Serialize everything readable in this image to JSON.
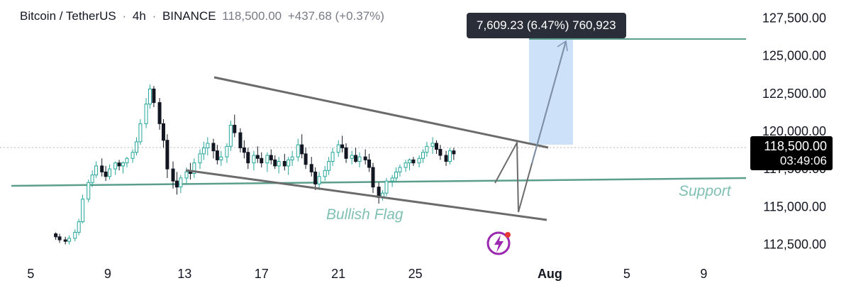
{
  "header": {
    "symbol": "Bitcoin / TetherUS",
    "separator": "·",
    "interval": "4h",
    "exchange": "BINANCE",
    "last_price": "118,500.00",
    "change": "+437.68 (+0.37%)"
  },
  "tooltip": {
    "text": "7,609.23 (6.47%) 760,923"
  },
  "price_tag": {
    "price": "118,500.00",
    "countdown": "03:49:06"
  },
  "colors": {
    "up": "#26a69a",
    "down": "#131722",
    "support_line": "#5a9e8b",
    "support_text": "#80c0b2",
    "flag_lines": "#6b6b6b",
    "target_box": "#cde2f8",
    "arrow": "#7f95b3",
    "grid_dotted": "#b0b3b8",
    "lightning": "#9c27b0"
  },
  "annotations": {
    "support_label": "Support",
    "pattern_label": "Bullish Flag",
    "lightning_icon": "lightning-icon"
  },
  "chart_data": {
    "type": "candlestick",
    "symbol": "BTCUSDT",
    "interval": "4h",
    "y_axis": {
      "ticks": [
        "112,500.00",
        "115,000.00",
        "117,500.00",
        "120,000.00",
        "122,500.00",
        "125,000.00",
        "127,500.00"
      ],
      "range": [
        111300,
        128700
      ]
    },
    "x_axis": {
      "ticks": [
        "5",
        "9",
        "13",
        "17",
        "21",
        "25",
        "Aug",
        "5",
        "9"
      ],
      "range_days": [
        3.4,
        42.2
      ]
    },
    "current_price": 118500,
    "support_level": {
      "label": "Support",
      "from": [
        -0.5,
        115750
      ],
      "to": [
        13.5,
        116300
      ]
    },
    "flag_channel": {
      "upper": {
        "from": [
          13.2,
          123300
        ],
        "to": [
          31.2,
          118650
        ]
      },
      "lower": {
        "from": [
          12.9,
          117200
        ],
        "to": [
          31.2,
          113500
        ]
      }
    },
    "projection_path": [
      [
        29.9,
        116000
      ],
      [
        30.6,
        118700
      ],
      [
        30.9,
        113900
      ],
      [
        31.8,
        125650
      ]
    ],
    "target": {
      "low": 118750,
      "high": 125950,
      "x_from": 30.2,
      "x_to": 32.4
    },
    "target_line": 125850,
    "measurement": {
      "price_change": 7609.23,
      "percent": 6.47,
      "ticks": 760923
    },
    "candles": [
      [
        6.3,
        113200,
        113300,
        112800,
        113000
      ],
      [
        6.5,
        113000,
        113200,
        112600,
        112800
      ],
      [
        6.8,
        112800,
        113000,
        112500,
        112700
      ],
      [
        7.0,
        112700,
        113100,
        112500,
        112900
      ],
      [
        7.3,
        112900,
        113500,
        112700,
        113300
      ],
      [
        7.5,
        113300,
        114200,
        113100,
        114000
      ],
      [
        7.7,
        114000,
        115800,
        113900,
        115500
      ],
      [
        8.0,
        115500,
        116800,
        115300,
        116600
      ],
      [
        8.2,
        116600,
        117400,
        116300,
        117100
      ],
      [
        8.4,
        117100,
        118000,
        116900,
        117700
      ],
      [
        8.7,
        117700,
        118200,
        117000,
        117300
      ],
      [
        8.9,
        117300,
        117700,
        116700,
        117000
      ],
      [
        9.1,
        117000,
        117800,
        116800,
        117500
      ],
      [
        9.4,
        117500,
        118000,
        117100,
        117900
      ],
      [
        9.6,
        117900,
        118100,
        117400,
        117700
      ],
      [
        9.8,
        117700,
        118000,
        117200,
        117900
      ],
      [
        10.0,
        117900,
        118300,
        117600,
        118200
      ],
      [
        10.3,
        118200,
        118800,
        117900,
        118600
      ],
      [
        10.5,
        118600,
        119600,
        118400,
        119300
      ],
      [
        10.7,
        119300,
        120800,
        119100,
        120500
      ],
      [
        11.0,
        120500,
        122200,
        120200,
        121800
      ],
      [
        11.2,
        121800,
        123100,
        121500,
        122800
      ],
      [
        11.4,
        122800,
        123000,
        121600,
        121900
      ],
      [
        11.7,
        121900,
        122200,
        120100,
        120500
      ],
      [
        11.9,
        120500,
        120800,
        118900,
        119400
      ],
      [
        12.1,
        119400,
        119800,
        116900,
        117500
      ],
      [
        12.4,
        117500,
        118000,
        116200,
        116700
      ],
      [
        12.6,
        116700,
        117300,
        115800,
        116300
      ],
      [
        12.8,
        116300,
        117100,
        115900,
        116900
      ],
      [
        13.1,
        116900,
        117600,
        116500,
        117300
      ],
      [
        13.3,
        117300,
        117900,
        116800,
        117200
      ],
      [
        13.5,
        117200,
        118200,
        116900,
        117900
      ],
      [
        13.8,
        117900,
        118800,
        117500,
        118500
      ],
      [
        14.0,
        118500,
        119300,
        118100,
        118900
      ],
      [
        14.2,
        118900,
        119600,
        118400,
        119200
      ],
      [
        14.5,
        119200,
        119500,
        118200,
        118700
      ],
      [
        14.7,
        118700,
        119100,
        117800,
        118100
      ],
      [
        14.9,
        118100,
        118700,
        117700,
        118300
      ],
      [
        15.2,
        118300,
        119200,
        117900,
        119000
      ],
      [
        15.4,
        119000,
        120700,
        118700,
        120400
      ],
      [
        15.6,
        120400,
        121100,
        119600,
        119900
      ],
      [
        15.9,
        119900,
        120200,
        118600,
        118900
      ],
      [
        16.1,
        118900,
        119400,
        118200,
        118600
      ],
      [
        16.3,
        118600,
        118900,
        117500,
        117900
      ],
      [
        16.6,
        117900,
        118700,
        117400,
        118400
      ],
      [
        16.8,
        118400,
        119000,
        117900,
        118200
      ],
      [
        17.0,
        118200,
        118600,
        117600,
        117900
      ],
      [
        17.3,
        117900,
        118600,
        117300,
        118400
      ],
      [
        17.5,
        118400,
        118800,
        117800,
        118100
      ],
      [
        17.7,
        118100,
        118400,
        117500,
        117700
      ],
      [
        17.9,
        117700,
        118300,
        117200,
        118000
      ],
      [
        18.2,
        118000,
        118500,
        117400,
        117700
      ],
      [
        18.4,
        117700,
        118300,
        117100,
        118100
      ],
      [
        18.6,
        118100,
        118700,
        117700,
        118300
      ],
      [
        18.9,
        118300,
        119500,
        118000,
        119100
      ],
      [
        19.1,
        119100,
        119800,
        118200,
        118500
      ],
      [
        19.3,
        118500,
        118900,
        117500,
        117800
      ],
      [
        19.6,
        117800,
        118300,
        117000,
        117300
      ],
      [
        19.8,
        117300,
        117600,
        116100,
        116500
      ],
      [
        20.0,
        116500,
        117300,
        116100,
        117000
      ],
      [
        20.3,
        117000,
        117700,
        116700,
        117400
      ],
      [
        20.5,
        117400,
        118300,
        117100,
        118000
      ],
      [
        20.7,
        118000,
        118900,
        117700,
        118600
      ],
      [
        21.0,
        118600,
        119400,
        118300,
        119100
      ],
      [
        21.2,
        119100,
        119700,
        118600,
        118900
      ],
      [
        21.4,
        118900,
        119200,
        117900,
        118200
      ],
      [
        21.7,
        118200,
        118700,
        117800,
        118400
      ],
      [
        21.9,
        118400,
        118900,
        117900,
        118000
      ],
      [
        22.1,
        118000,
        118600,
        117600,
        118300
      ],
      [
        22.4,
        118300,
        118800,
        117800,
        118100
      ],
      [
        22.6,
        118100,
        118500,
        117300,
        117600
      ],
      [
        22.8,
        117600,
        117900,
        115900,
        116300
      ],
      [
        23.1,
        116300,
        116600,
        115200,
        115600
      ],
      [
        23.3,
        115600,
        116100,
        115400,
        115900
      ],
      [
        23.5,
        115900,
        116900,
        115700,
        116700
      ],
      [
        23.8,
        116700,
        117100,
        116300,
        116900
      ],
      [
        24.0,
        116900,
        117600,
        116600,
        117300
      ],
      [
        24.2,
        117300,
        117800,
        117000,
        117600
      ],
      [
        24.5,
        117600,
        118100,
        117300,
        117900
      ],
      [
        24.7,
        117900,
        118200,
        117400,
        118100
      ],
      [
        24.9,
        118100,
        118300,
        117700,
        117900
      ],
      [
        25.2,
        117900,
        118400,
        117600,
        118200
      ],
      [
        25.4,
        118200,
        118800,
        117900,
        118600
      ],
      [
        25.6,
        118600,
        119300,
        118300,
        119000
      ],
      [
        25.9,
        119000,
        119600,
        118500,
        119200
      ],
      [
        26.1,
        119200,
        119400,
        118500,
        118800
      ],
      [
        26.3,
        118800,
        119100,
        118100,
        118400
      ],
      [
        26.6,
        118400,
        118700,
        117700,
        118000
      ],
      [
        26.8,
        118000,
        118900,
        117800,
        118700
      ],
      [
        27.0,
        118700,
        118900,
        118100,
        118500
      ]
    ]
  }
}
